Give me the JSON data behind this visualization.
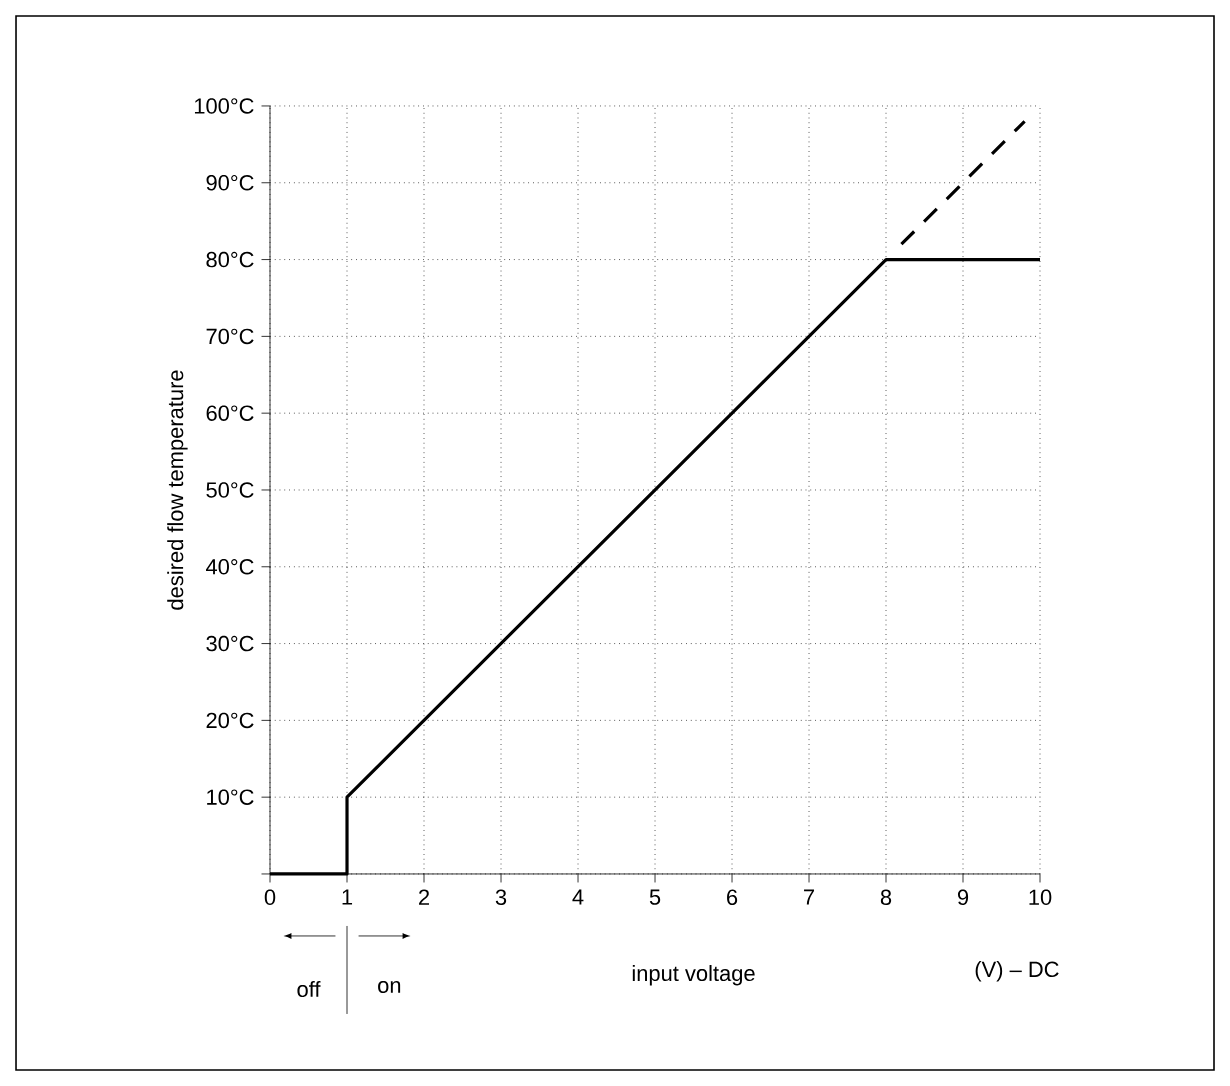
{
  "chart_data": {
    "type": "line",
    "xlabel": "input voltage",
    "ylabel": "desired flow temperature",
    "annotations": [
      "off",
      "on",
      "(V) – DC"
    ],
    "xlim": [
      0,
      10
    ],
    "ylim": [
      0,
      100
    ],
    "xticks": [
      0,
      1,
      2,
      3,
      4,
      5,
      6,
      7,
      8,
      9,
      10
    ],
    "yticks": [
      {
        "value": 0,
        "label": null
      },
      {
        "value": 10,
        "label": "10°C"
      },
      {
        "value": 20,
        "label": "20°C"
      },
      {
        "value": 30,
        "label": "30°C"
      },
      {
        "value": 40,
        "label": "40°C"
      },
      {
        "value": 50,
        "label": "50°C"
      },
      {
        "value": 60,
        "label": "60°C"
      },
      {
        "value": 70,
        "label": "70°C"
      },
      {
        "value": 80,
        "label": "80°C"
      },
      {
        "value": 90,
        "label": "90°C"
      },
      {
        "value": 100,
        "label": "100°C"
      }
    ],
    "grid": true,
    "marker": "none",
    "series": [
      {
        "color": "#000000",
        "line_style": "solid",
        "x": [
          0,
          1,
          1,
          8,
          10
        ],
        "values": [
          0,
          0,
          10,
          80,
          80
        ]
      },
      {
        "color": "#000000",
        "line_style": "dashed",
        "x": [
          8.2,
          9.8
        ],
        "values": [
          82,
          98
        ]
      }
    ]
  }
}
